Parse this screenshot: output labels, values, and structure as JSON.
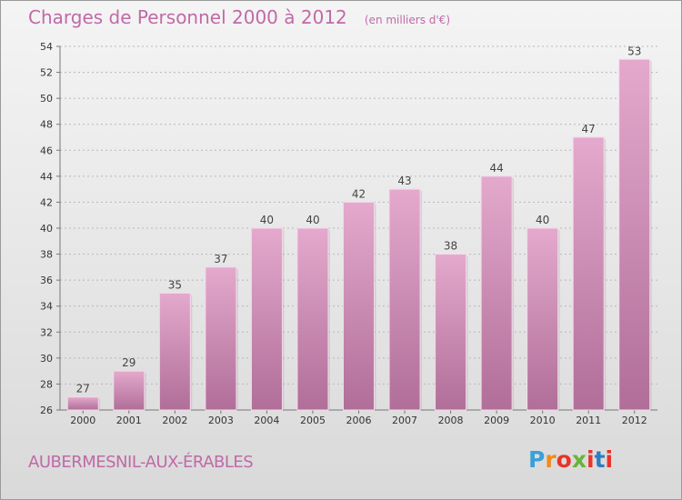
{
  "chart_data": {
    "type": "bar",
    "title": "Charges de Personnel 2000 à 2012",
    "subtitle": "(en milliers d'€)",
    "categories": [
      "2000",
      "2001",
      "2002",
      "2003",
      "2004",
      "2005",
      "2006",
      "2007",
      "2008",
      "2009",
      "2010",
      "2011",
      "2012"
    ],
    "values": [
      27,
      29,
      35,
      37,
      40,
      40,
      42,
      43,
      38,
      44,
      40,
      47,
      53
    ],
    "ylim": [
      26,
      54
    ],
    "yticks": [
      26,
      28,
      30,
      32,
      34,
      36,
      38,
      40,
      42,
      44,
      46,
      48,
      50,
      52,
      54
    ],
    "grid": true,
    "bar_color_top": "#e4a9cd",
    "bar_color_bottom": "#b06e98"
  },
  "commune": "AUBERMESNIL-AUX-ÉRABLES",
  "logo": {
    "text": "Proxiti",
    "letter_colors": [
      "#3aa0d8",
      "#f08a1c",
      "#e8342a",
      "#69b33a",
      "#e8342a",
      "#2f7dc0",
      "#e8342a"
    ]
  },
  "colors": {
    "accent": "#c06aa8"
  }
}
